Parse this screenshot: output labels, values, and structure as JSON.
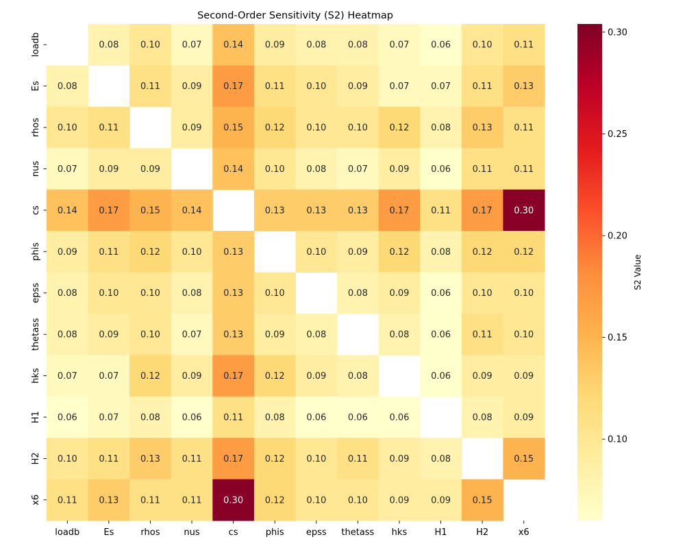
{
  "chart_data": {
    "type": "heatmap",
    "title": "Second-Order Sensitivity (S2) Heatmap",
    "xlabel": "",
    "ylabel": "",
    "x_labels": [
      "loadb",
      "Es",
      "rhos",
      "nus",
      "cs",
      "phis",
      "epss",
      "thetass",
      "hks",
      "H1",
      "H2",
      "x6"
    ],
    "y_labels": [
      "loadb",
      "Es",
      "rhos",
      "nus",
      "cs",
      "phis",
      "epss",
      "thetass",
      "hks",
      "H1",
      "H2",
      "x6"
    ],
    "values": [
      [
        null,
        0.08,
        0.1,
        0.07,
        0.14,
        0.09,
        0.08,
        0.08,
        0.07,
        0.06,
        0.1,
        0.11
      ],
      [
        0.08,
        null,
        0.11,
        0.09,
        0.17,
        0.11,
        0.1,
        0.09,
        0.07,
        0.07,
        0.11,
        0.13
      ],
      [
        0.1,
        0.11,
        null,
        0.09,
        0.15,
        0.12,
        0.1,
        0.1,
        0.12,
        0.08,
        0.13,
        0.11
      ],
      [
        0.07,
        0.09,
        0.09,
        null,
        0.14,
        0.1,
        0.08,
        0.07,
        0.09,
        0.06,
        0.11,
        0.11
      ],
      [
        0.14,
        0.17,
        0.15,
        0.14,
        null,
        0.13,
        0.13,
        0.13,
        0.17,
        0.11,
        0.17,
        0.3
      ],
      [
        0.09,
        0.11,
        0.12,
        0.1,
        0.13,
        null,
        0.1,
        0.09,
        0.12,
        0.08,
        0.12,
        0.12
      ],
      [
        0.08,
        0.1,
        0.1,
        0.08,
        0.13,
        0.1,
        null,
        0.08,
        0.09,
        0.06,
        0.1,
        0.1
      ],
      [
        0.08,
        0.09,
        0.1,
        0.07,
        0.13,
        0.09,
        0.08,
        null,
        0.08,
        0.06,
        0.11,
        0.1
      ],
      [
        0.07,
        0.07,
        0.12,
        0.09,
        0.17,
        0.12,
        0.09,
        0.08,
        null,
        0.06,
        0.09,
        0.09
      ],
      [
        0.06,
        0.07,
        0.08,
        0.06,
        0.11,
        0.08,
        0.06,
        0.06,
        0.06,
        null,
        0.08,
        0.09
      ],
      [
        0.1,
        0.11,
        0.13,
        0.11,
        0.17,
        0.12,
        0.1,
        0.11,
        0.09,
        0.08,
        null,
        0.15
      ],
      [
        0.11,
        0.13,
        0.11,
        0.11,
        0.3,
        0.12,
        0.1,
        0.1,
        0.09,
        0.09,
        0.15,
        null
      ]
    ],
    "value_format_decimals": 2,
    "colormap": "YlOrRd",
    "colormap_stops": [
      "#ffffcc",
      "#ffeda0",
      "#fed976",
      "#feb24c",
      "#fd8d3c",
      "#fc4e2a",
      "#e31a1c",
      "#bd0026",
      "#800026"
    ],
    "colorbar": {
      "label": "S2 Value",
      "range": [
        0.06,
        0.304
      ],
      "ticks": [
        0.1,
        0.15,
        0.2,
        0.25,
        0.3
      ],
      "tick_labels": [
        "0.10",
        "0.15",
        "0.20",
        "0.25",
        "0.30"
      ]
    },
    "diagonal_masked": true,
    "grid": false
  }
}
